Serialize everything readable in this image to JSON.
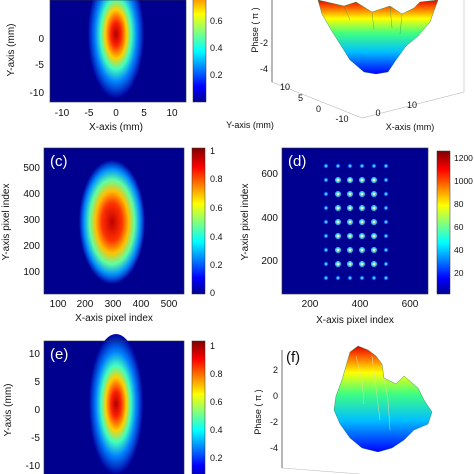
{
  "panel_a": {
    "xlabel": "X-axis (mm)",
    "ylabel": "Y-axis (mm)",
    "xticks": [
      "-10",
      "-5",
      "0",
      "5",
      "10"
    ],
    "yticks": [
      "0",
      "-5",
      "-10"
    ],
    "cbar_ticks": [
      "0.6",
      "0.4",
      "0.2"
    ]
  },
  "panel_b": {
    "zlabel": "Phase ( π )",
    "zticks": [
      "-2",
      "-4"
    ],
    "ylabel": "Y-axis (mm)",
    "yticks": [
      "10",
      "5",
      "0"
    ],
    "xlabel": "X-axis (mm)",
    "xticks": [
      "-10",
      "0",
      "10"
    ]
  },
  "panel_c": {
    "letter": "(c)",
    "xlabel": "X-axis pixel index",
    "ylabel": "Y-axis pixel index",
    "xticks": [
      "100",
      "200",
      "300",
      "400",
      "500"
    ],
    "yticks": [
      "500",
      "400",
      "300",
      "200",
      "100"
    ],
    "cbar_ticks": [
      "1",
      "0.8",
      "0.6",
      "0.4",
      "0.2",
      "0"
    ]
  },
  "panel_d": {
    "letter": "(d)",
    "xlabel": "X-axis pixel index",
    "ylabel": "Y-axis pixel index",
    "xticks": [
      "200",
      "400",
      "600"
    ],
    "yticks": [
      "600",
      "400",
      "200"
    ],
    "cbar_ticks": [
      "1200",
      "1000",
      "80",
      "60",
      "40",
      "20"
    ]
  },
  "panel_e": {
    "letter": "(e)",
    "ylabel": "Y-axis (mm)",
    "yticks": [
      "10",
      "5",
      "0",
      "-5",
      "-10"
    ],
    "cbar_ticks": [
      "1",
      "0.8",
      "0.6",
      "0.4",
      "0.2"
    ]
  },
  "panel_f": {
    "letter": "(f)",
    "zlabel": "Phase ( π )",
    "zticks": [
      "2",
      "0",
      "-2",
      "-4"
    ]
  },
  "colors": {
    "jet_dark_red": "#800000",
    "jet_red": "#ff0000",
    "jet_yellow": "#ffff00",
    "jet_cyan": "#00ffff",
    "jet_blue": "#0000ff",
    "jet_dark_blue": "#00008f"
  }
}
